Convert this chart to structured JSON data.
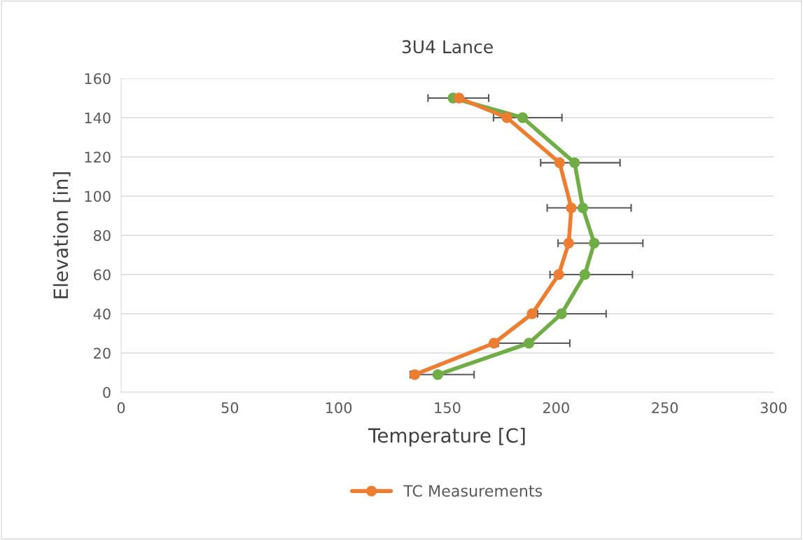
{
  "chart_data": {
    "type": "line",
    "title": "3U4 Lance",
    "xlabel": "Temperature [C]",
    "ylabel": "Elevation [in]",
    "xlim": [
      0,
      300
    ],
    "xticks": [
      0,
      50,
      100,
      150,
      200,
      250,
      300
    ],
    "ylim": [
      0,
      160
    ],
    "yticks": [
      0,
      20,
      40,
      60,
      80,
      100,
      120,
      140,
      160
    ],
    "grid": "y",
    "legend": "bottom",
    "marker": "circle",
    "line_style": "solid",
    "series": [
      {
        "color": "#70ad47",
        "x": [
          145.6,
          187.5,
          202.5,
          213.2,
          217.5,
          212.3,
          208.5,
          184.6,
          152.6
        ],
        "values": [
          9,
          25,
          40,
          60,
          76,
          94,
          117,
          140,
          150
        ],
        "xerrors": [
          [
            132.9,
            162.3
          ],
          [
            173.4,
            206.3
          ],
          [
            191.5,
            223.0
          ],
          [
            197.2,
            235.1
          ],
          [
            200.9,
            239.9
          ],
          [
            195.9,
            234.5
          ],
          [
            192.9,
            229.4
          ],
          [
            171.2,
            202.7
          ],
          [
            141.1,
            169.0
          ]
        ]
      },
      {
        "name": "TC Measurements",
        "color": "#ed7d31",
        "x": [
          135.0,
          171.4,
          189.0,
          201.2,
          205.8,
          207.0,
          201.6,
          177.4,
          155.4
        ],
        "values": [
          9,
          25,
          40,
          60,
          76,
          94,
          117,
          140,
          150
        ]
      }
    ]
  }
}
